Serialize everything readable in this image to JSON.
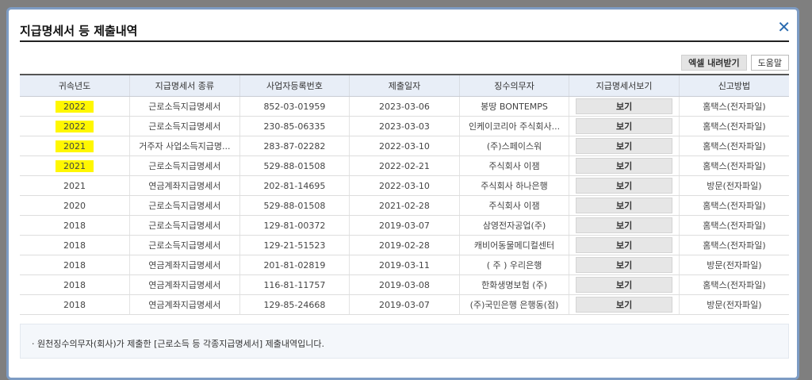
{
  "modal": {
    "title": "지급명세서 등 제출내역",
    "close_icon": "close-icon",
    "excel_button": "엑셀 내려받기",
    "help_button": "도움말"
  },
  "table": {
    "headers": [
      "귀속년도",
      "지급명세서 종류",
      "사업자등록번호",
      "제출일자",
      "징수의무자",
      "지급명세서보기",
      "신고방법"
    ],
    "rows": [
      {
        "year": "2022",
        "highlighted": true,
        "type": "근로소득지급명세서",
        "bizno": "852-03-01959",
        "date": "2023-03-06",
        "payer": "봉땅 BONTEMPS",
        "view": "보기",
        "method": "홈택스(전자파일)"
      },
      {
        "year": "2022",
        "highlighted": true,
        "type": "근로소득지급명세서",
        "bizno": "230-85-06335",
        "date": "2023-03-03",
        "payer": "인케이코리아 주식회사...",
        "view": "보기",
        "method": "홈택스(전자파일)"
      },
      {
        "year": "2021",
        "highlighted": true,
        "type": "거주자 사업소득지급명...",
        "bizno": "283-87-02282",
        "date": "2022-03-10",
        "payer": "(주)스페이스워",
        "view": "보기",
        "method": "홈택스(전자파일)"
      },
      {
        "year": "2021",
        "highlighted": true,
        "type": "근로소득지급명세서",
        "bizno": "529-88-01508",
        "date": "2022-02-21",
        "payer": "주식회사 이잼",
        "view": "보기",
        "method": "홈택스(전자파일)"
      },
      {
        "year": "2021",
        "highlighted": false,
        "type": "연금계좌지급명세서",
        "bizno": "202-81-14695",
        "date": "2022-03-10",
        "payer": "주식회사 하나은행",
        "view": "보기",
        "method": "방문(전자파일)"
      },
      {
        "year": "2020",
        "highlighted": false,
        "type": "근로소득지급명세서",
        "bizno": "529-88-01508",
        "date": "2021-02-28",
        "payer": "주식회사 이잼",
        "view": "보기",
        "method": "홈택스(전자파일)"
      },
      {
        "year": "2018",
        "highlighted": false,
        "type": "근로소득지급명세서",
        "bizno": "129-81-00372",
        "date": "2019-03-07",
        "payer": "삼영전자공업(주)",
        "view": "보기",
        "method": "홈택스(전자파일)"
      },
      {
        "year": "2018",
        "highlighted": false,
        "type": "근로소득지급명세서",
        "bizno": "129-21-51523",
        "date": "2019-02-28",
        "payer": "캐비어동물메디컬센터",
        "view": "보기",
        "method": "홈택스(전자파일)"
      },
      {
        "year": "2018",
        "highlighted": false,
        "type": "연금계좌지급명세서",
        "bizno": "201-81-02819",
        "date": "2019-03-11",
        "payer": "( 주 ) 우리은행",
        "view": "보기",
        "method": "방문(전자파일)"
      },
      {
        "year": "2018",
        "highlighted": false,
        "type": "연금계좌지급명세서",
        "bizno": "116-81-11757",
        "date": "2019-03-08",
        "payer": "한화생명보험 (주)",
        "view": "보기",
        "method": "홈택스(전자파일)"
      },
      {
        "year": "2018",
        "highlighted": false,
        "type": "연금계좌지급명세서",
        "bizno": "129-85-24668",
        "date": "2019-03-07",
        "payer": "(주)국민은행 은행동(점)",
        "view": "보기",
        "method": "방문(전자파일)"
      }
    ]
  },
  "note": "· 원천징수의무자(회사)가 제출한 [근로소득 등 각종지급명세서] 제출내역입니다.",
  "colors": {
    "highlight": "#fff700",
    "header_bg": "#e8eef7",
    "modal_border": "#7d9cc4"
  }
}
